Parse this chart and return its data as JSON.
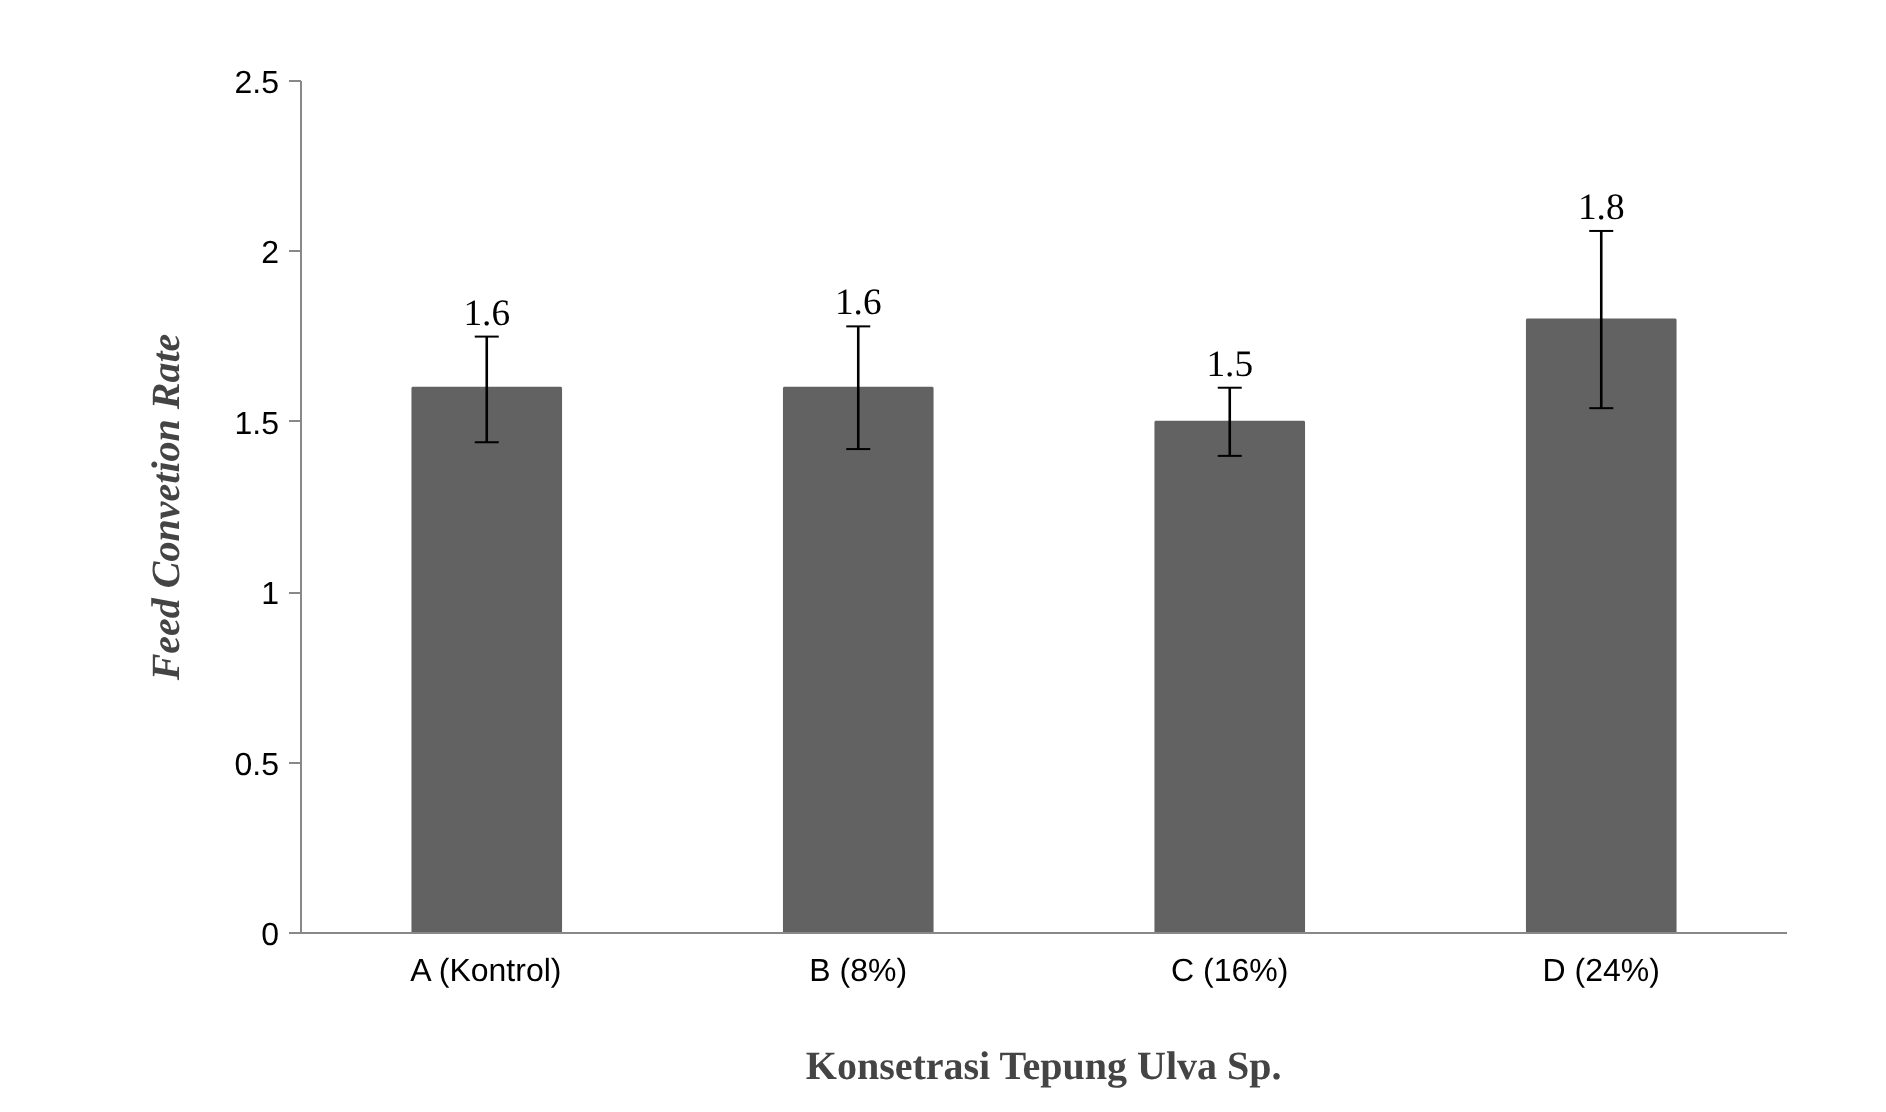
{
  "chart_data": {
    "type": "bar",
    "xlabel": "Konsetrasi Tepung Ulva Sp.",
    "ylabel": "Feed Convetion Rate",
    "categories": [
      "A (Kontrol)",
      "B (8%)",
      "C (16%)",
      "D (24%)"
    ],
    "values": [
      1.6,
      1.6,
      1.5,
      1.8
    ],
    "color": "#626262",
    "errors": [
      [
        1.44,
        1.75
      ],
      [
        1.42,
        1.78
      ],
      [
        1.4,
        1.6
      ],
      [
        1.54,
        2.06
      ]
    ],
    "data_labels": true,
    "ylim": [
      0,
      2.5
    ],
    "yticks": [
      0,
      0.5,
      1,
      1.5,
      2,
      2.5
    ],
    "grid": false
  }
}
